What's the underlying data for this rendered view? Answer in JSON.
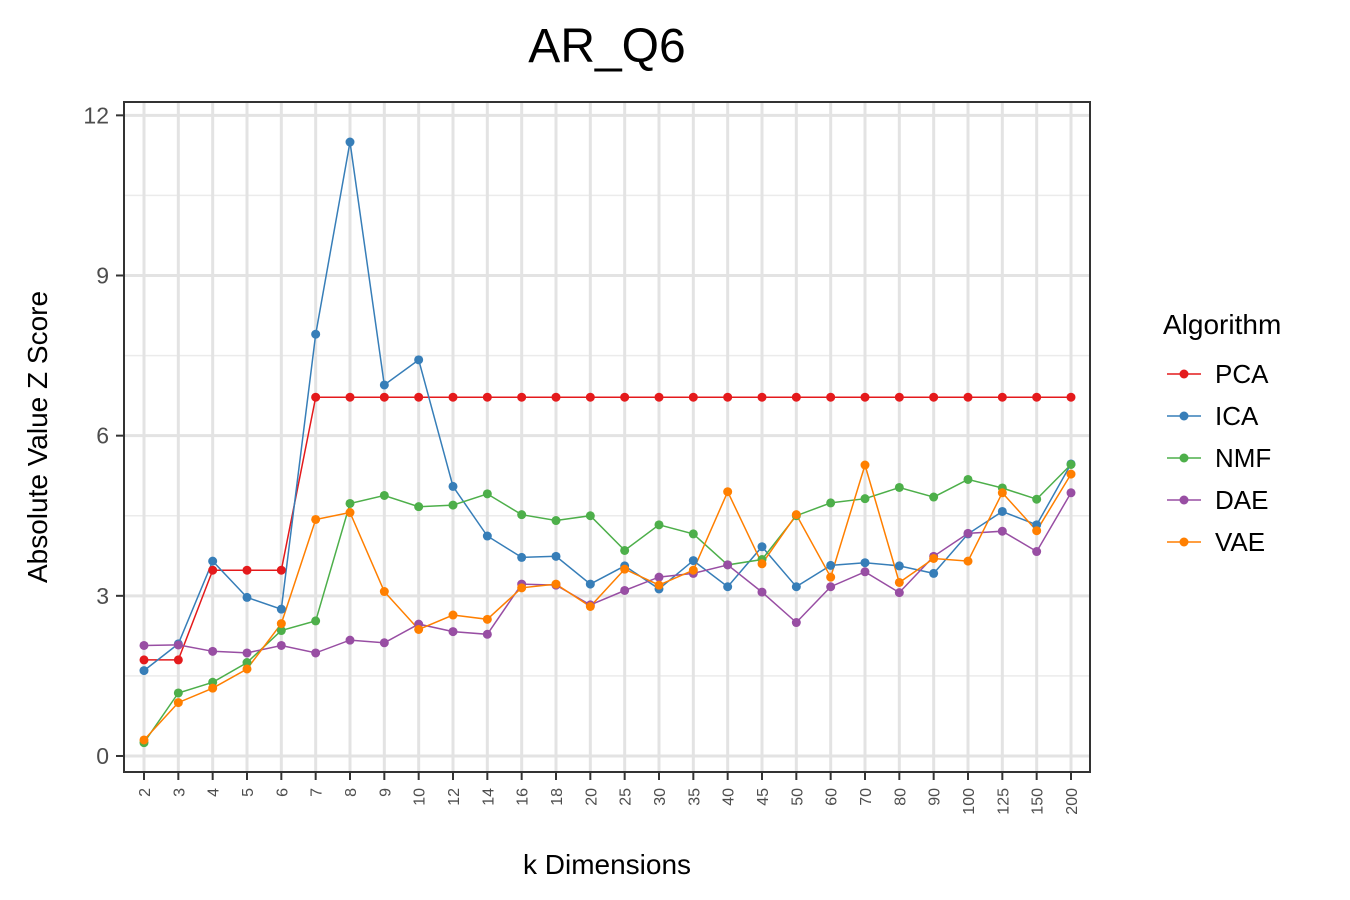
{
  "chart_data": {
    "type": "line",
    "title": "AR_Q6",
    "xlabel": "k Dimensions",
    "ylabel": "Absolute Value Z Score",
    "ylim": [
      -0.3,
      12.25
    ],
    "yticks": [
      0,
      3,
      6,
      9,
      12
    ],
    "grid": true,
    "legend_position": "right",
    "legend_title": "Algorithm",
    "categories": [
      "2",
      "3",
      "4",
      "5",
      "6",
      "7",
      "8",
      "9",
      "10",
      "12",
      "14",
      "16",
      "18",
      "20",
      "25",
      "30",
      "35",
      "40",
      "45",
      "50",
      "60",
      "70",
      "80",
      "90",
      "100",
      "125",
      "150",
      "200"
    ],
    "series": [
      {
        "name": "PCA",
        "color": "#e41a1c",
        "values": [
          1.8,
          1.8,
          3.48,
          3.48,
          3.48,
          6.72,
          6.72,
          6.72,
          6.72,
          6.72,
          6.72,
          6.72,
          6.72,
          6.72,
          6.72,
          6.72,
          6.72,
          6.72,
          6.72,
          6.72,
          6.72,
          6.72,
          6.72,
          6.72,
          6.72,
          6.72,
          6.72,
          6.72
        ]
      },
      {
        "name": "ICA",
        "color": "#377eb8",
        "values": [
          1.6,
          2.1,
          3.65,
          2.97,
          2.75,
          7.9,
          11.5,
          6.95,
          7.42,
          5.05,
          4.12,
          3.72,
          3.74,
          3.22,
          3.56,
          3.13,
          3.66,
          3.17,
          3.92,
          3.17,
          3.57,
          3.62,
          3.56,
          3.42,
          4.16,
          4.58,
          4.33,
          5.47
        ]
      },
      {
        "name": "NMF",
        "color": "#4daf4a",
        "values": [
          0.25,
          1.18,
          1.38,
          1.75,
          2.35,
          2.53,
          4.73,
          4.88,
          4.67,
          4.7,
          4.91,
          4.52,
          4.41,
          4.5,
          3.85,
          4.33,
          4.16,
          3.58,
          3.68,
          4.5,
          4.74,
          4.82,
          5.03,
          4.85,
          5.18,
          5.02,
          4.81,
          5.46
        ]
      },
      {
        "name": "DAE",
        "color": "#984ea3",
        "values": [
          2.07,
          2.08,
          1.96,
          1.93,
          2.07,
          1.93,
          2.17,
          2.12,
          2.47,
          2.33,
          2.28,
          3.22,
          3.2,
          2.83,
          3.1,
          3.35,
          3.42,
          3.58,
          3.07,
          2.5,
          3.17,
          3.45,
          3.06,
          3.74,
          4.17,
          4.21,
          3.83,
          4.93
        ]
      },
      {
        "name": "VAE",
        "color": "#ff7f00",
        "values": [
          0.3,
          1.0,
          1.27,
          1.63,
          2.48,
          4.43,
          4.56,
          3.08,
          2.37,
          2.64,
          2.56,
          3.15,
          3.22,
          2.8,
          3.5,
          3.2,
          3.48,
          4.95,
          3.6,
          4.52,
          3.35,
          5.45,
          3.25,
          3.7,
          3.65,
          4.93,
          4.22,
          5.28
        ]
      }
    ]
  }
}
